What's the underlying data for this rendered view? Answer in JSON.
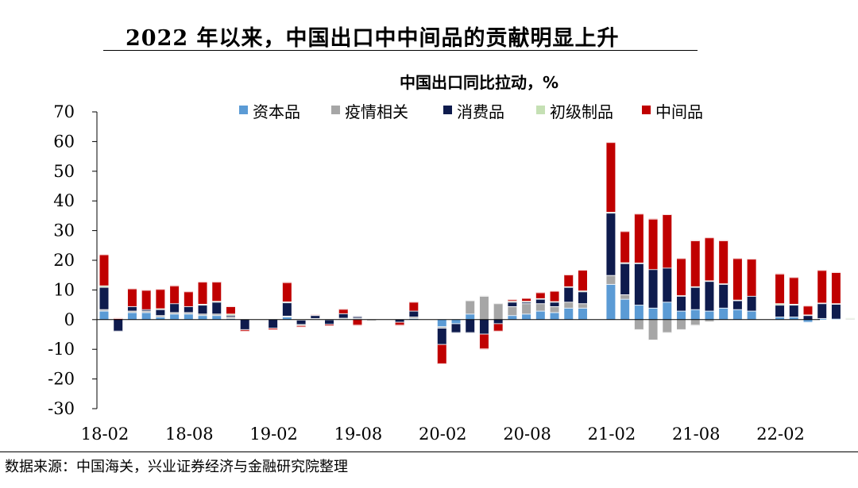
{
  "header": {
    "title": "2022 年以来，中国出口中中间品的贡献明显上升",
    "subtitle": "中国出口同比拉动，%",
    "source": "数据来源：中国海关，兴业证券经济与金融研究院整理"
  },
  "chart_data": {
    "type": "bar",
    "stacked": true,
    "ylim": [
      -30,
      70
    ],
    "yticks": [
      70,
      60,
      50,
      40,
      30,
      20,
      10,
      0,
      -10,
      -20,
      -30
    ],
    "yticks_labels": [
      "70",
      "60",
      "50",
      "40",
      "30",
      "20",
      "10",
      "0",
      "-10",
      "-20",
      "-30"
    ],
    "xtick_labels": [
      {
        "label": "18-02",
        "index": 0
      },
      {
        "label": "18-08",
        "index": 6
      },
      {
        "label": "19-02",
        "index": 12
      },
      {
        "label": "19-08",
        "index": 18
      },
      {
        "label": "20-02",
        "index": 24
      },
      {
        "label": "20-08",
        "index": 30
      },
      {
        "label": "21-02",
        "index": 36
      },
      {
        "label": "21-08",
        "index": 42
      },
      {
        "label": "22-02",
        "index": 48
      }
    ],
    "categories": [
      "18-02",
      "18-03",
      "18-04",
      "18-05",
      "18-06",
      "18-07",
      "18-08",
      "18-09",
      "18-10",
      "18-11",
      "18-12",
      "19-01",
      "19-02",
      "19-03",
      "19-04",
      "19-05",
      "19-06",
      "19-07",
      "19-08",
      "19-09",
      "19-10",
      "19-11",
      "19-12",
      "20-01",
      "20-02",
      "20-03",
      "20-04",
      "20-05",
      "20-06",
      "20-07",
      "20-08",
      "20-09",
      "20-10",
      "20-11",
      "20-12",
      "21-01",
      "21-02",
      "21-03",
      "21-04",
      "21-05",
      "21-06",
      "21-07",
      "21-08",
      "21-09",
      "21-10",
      "21-11",
      "21-12",
      "22-01",
      "22-02",
      "22-03",
      "22-04",
      "22-05",
      "22-06",
      "22-07"
    ],
    "series": [
      {
        "name": "资本品",
        "color": "#5b9bd5",
        "values": [
          3.0,
          0,
          2.5,
          2.5,
          1,
          2,
          2,
          1.5,
          1.5,
          0.5,
          0,
          0,
          0,
          1,
          0,
          0.3,
          0,
          0.3,
          0.3,
          0,
          0,
          0,
          0.5,
          0,
          -2.5,
          -1.5,
          2,
          0,
          0,
          1.5,
          2,
          3,
          2.5,
          4,
          4,
          0,
          12,
          7,
          5,
          4,
          6,
          3,
          3.5,
          3,
          4,
          3.5,
          3,
          0,
          1,
          1,
          -1,
          0.5,
          0.3,
          0
        ]
      },
      {
        "name": "疫情相关",
        "color": "#a6a6a6",
        "values": [
          0.5,
          0,
          0.5,
          0.5,
          0.5,
          0.5,
          0.5,
          0.5,
          0.5,
          0.5,
          0,
          0,
          0,
          0.3,
          -0.3,
          0.2,
          -0.2,
          0.3,
          0.3,
          -0.5,
          0,
          0,
          0.5,
          0,
          -0.5,
          0,
          4.5,
          8,
          5.5,
          3,
          3.5,
          2.5,
          2,
          2,
          1.5,
          0,
          3,
          1.5,
          -3.5,
          -7,
          -4.5,
          -3.5,
          -2,
          -0.8,
          0,
          0,
          0,
          0,
          0,
          0,
          0,
          0,
          0,
          0.3
        ]
      },
      {
        "name": "消费品",
        "color": "#0e1b4d",
        "values": [
          7.5,
          -4,
          1.5,
          0.5,
          2,
          3,
          2,
          3,
          4,
          0.5,
          -3.5,
          0,
          -3,
          4.5,
          -1.5,
          1,
          -1.5,
          1.5,
          0.5,
          0,
          0,
          -1,
          2,
          0,
          -5.5,
          -3,
          -4.5,
          -5,
          -1.5,
          1.5,
          0.5,
          1.5,
          1.5,
          5,
          4,
          0,
          21,
          10.5,
          14,
          13,
          11.5,
          5,
          7.5,
          10,
          8,
          3,
          5,
          0,
          4,
          4,
          1.5,
          5,
          5,
          0
        ]
      },
      {
        "name": "初级制品",
        "color": "#c5e0b4",
        "values": [
          0.5,
          0,
          0,
          0,
          0.3,
          0,
          0,
          0.3,
          0.3,
          0.5,
          0,
          0,
          0,
          0.3,
          -0.3,
          0,
          0,
          0,
          0,
          0,
          0,
          0,
          0,
          0,
          0,
          0,
          0,
          0,
          0,
          0.3,
          0.3,
          0.2,
          0.2,
          0.2,
          0.3,
          0,
          0.3,
          0.3,
          0.2,
          0,
          0,
          0.2,
          0.2,
          0.2,
          0.2,
          0.2,
          0,
          0,
          0.5,
          0.3,
          0.2,
          0.2,
          0.2,
          0.3
        ]
      },
      {
        "name": "中间品",
        "color": "#c00000",
        "values": [
          10.5,
          0.5,
          6,
          6.5,
          6.5,
          6,
          5,
          7.5,
          6.5,
          2.5,
          -0.5,
          0,
          -0.5,
          6.5,
          -0.5,
          0.2,
          -0.5,
          1.5,
          -2,
          0,
          0,
          -1,
          3,
          0,
          -6.5,
          0,
          0,
          -5,
          -2.5,
          0.5,
          1,
          2,
          3.5,
          4,
          7,
          0,
          23.5,
          10.5,
          16.5,
          17,
          18,
          12.5,
          15.5,
          14.5,
          14.5,
          14,
          12.5,
          0,
          10,
          9,
          3,
          11,
          10.5,
          0
        ]
      }
    ],
    "legend_placement": "top",
    "grid": false
  }
}
